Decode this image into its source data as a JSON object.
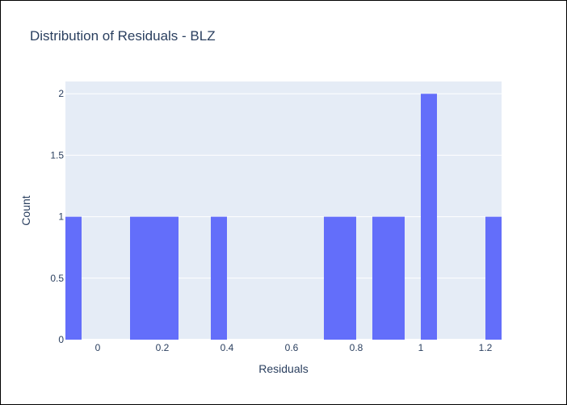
{
  "chart_data": {
    "type": "bar",
    "title": "Distribution of Residuals - BLZ",
    "xlabel": "Residuals",
    "ylabel": "Count",
    "xlim": [
      -0.1,
      1.25
    ],
    "ylim": [
      0,
      2.1
    ],
    "bin_width": 0.05,
    "bins": [
      {
        "start": -0.1,
        "end": -0.05,
        "count": 1
      },
      {
        "start": 0.1,
        "end": 0.15,
        "count": 1
      },
      {
        "start": 0.15,
        "end": 0.2,
        "count": 1
      },
      {
        "start": 0.2,
        "end": 0.25,
        "count": 1
      },
      {
        "start": 0.35,
        "end": 0.4,
        "count": 1
      },
      {
        "start": 0.7,
        "end": 0.75,
        "count": 1
      },
      {
        "start": 0.75,
        "end": 0.8,
        "count": 1
      },
      {
        "start": 0.85,
        "end": 0.9,
        "count": 1
      },
      {
        "start": 0.9,
        "end": 0.95,
        "count": 1
      },
      {
        "start": 1.0,
        "end": 1.05,
        "count": 2
      },
      {
        "start": 1.2,
        "end": 1.25,
        "count": 1
      }
    ],
    "x_ticks": [
      {
        "value": 0,
        "label": "0"
      },
      {
        "value": 0.2,
        "label": "0.2"
      },
      {
        "value": 0.4,
        "label": "0.4"
      },
      {
        "value": 0.6,
        "label": "0.6"
      },
      {
        "value": 0.8,
        "label": "0.8"
      },
      {
        "value": 1.0,
        "label": "1"
      },
      {
        "value": 1.2,
        "label": "1.2"
      }
    ],
    "y_ticks": [
      {
        "value": 0,
        "label": "0"
      },
      {
        "value": 0.5,
        "label": "0.5"
      },
      {
        "value": 1,
        "label": "1"
      },
      {
        "value": 1.5,
        "label": "1.5"
      },
      {
        "value": 2,
        "label": "2"
      }
    ],
    "grid": true,
    "legend": false,
    "colors": {
      "bar": "#636efa",
      "plot_background": "#e5ecf6",
      "gridline": "#ffffff",
      "text": "#2a3f5f"
    }
  }
}
